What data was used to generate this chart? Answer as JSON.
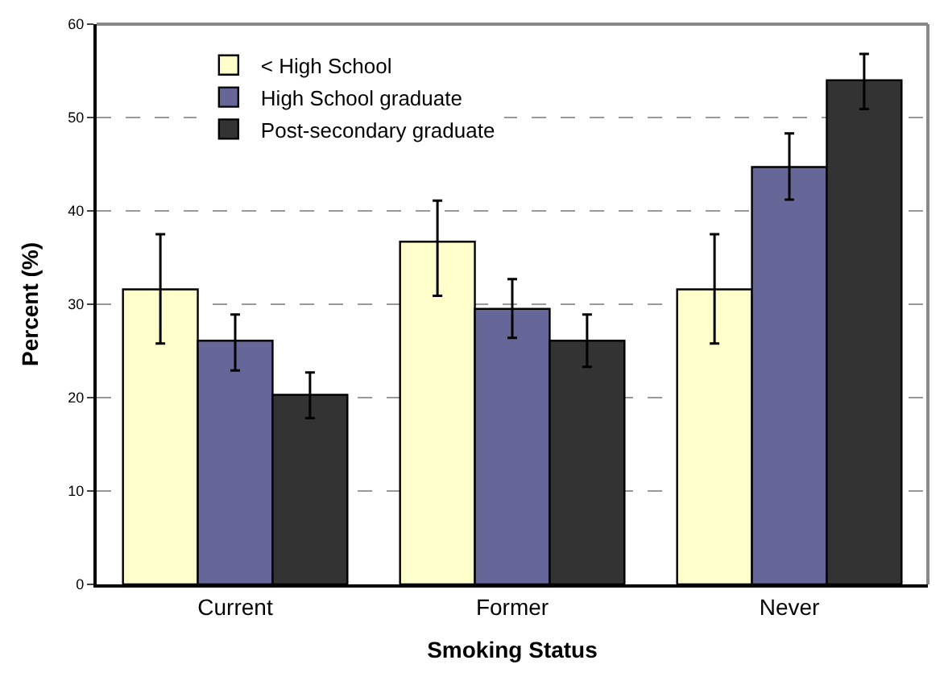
{
  "chart_data": {
    "type": "bar",
    "xlabel": "Smoking Status",
    "ylabel": "Percent (%)",
    "categories": [
      "Current",
      "Former",
      "Never"
    ],
    "series": [
      {
        "name": "< High School",
        "color": "#ffffcc",
        "values": [
          31.6,
          36.7,
          31.6
        ],
        "errors": [
          [
            25.8,
            37.5
          ],
          [
            30.9,
            41.1
          ],
          [
            25.8,
            37.5
          ]
        ]
      },
      {
        "name": "High School graduate",
        "color": "#666699",
        "values": [
          26.1,
          29.5,
          44.7
        ],
        "errors": [
          [
            22.9,
            28.9
          ],
          [
            26.4,
            32.7
          ],
          [
            41.2,
            48.3
          ]
        ]
      },
      {
        "name": "Post-secondary graduate",
        "color": "#333333",
        "values": [
          20.3,
          26.1,
          54.0
        ],
        "errors": [
          [
            17.8,
            22.7
          ],
          [
            23.3,
            28.9
          ],
          [
            50.9,
            56.8
          ]
        ]
      }
    ],
    "ylim": [
      0,
      60
    ],
    "yticks": [
      0,
      10,
      20,
      30,
      40,
      50,
      60
    ],
    "grid": "y",
    "legend": "top left"
  }
}
